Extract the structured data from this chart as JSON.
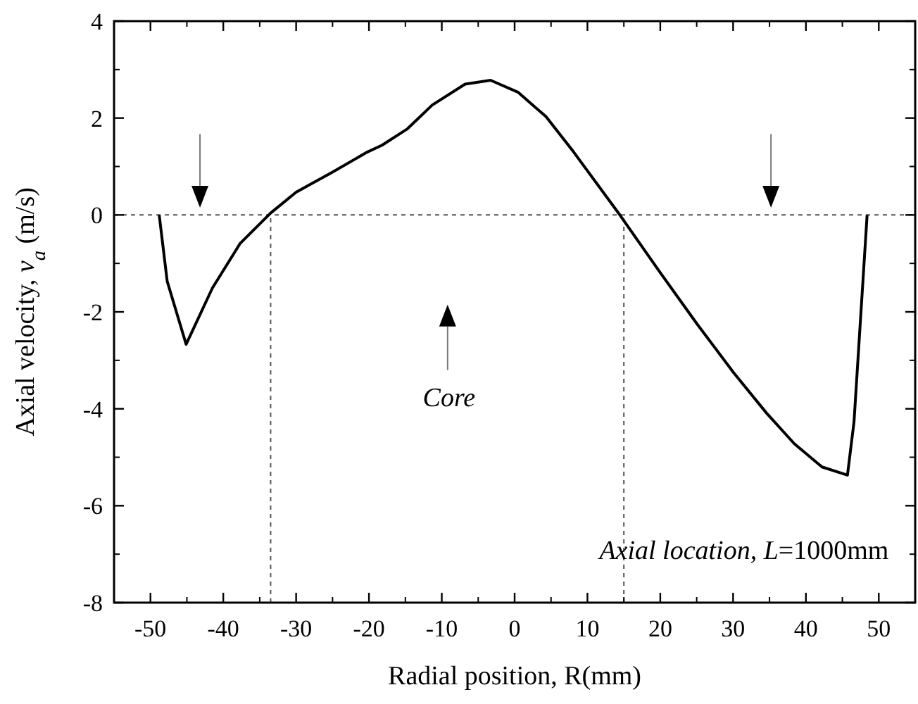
{
  "chart_data": {
    "type": "line",
    "xlabel": "Radial position, R(mm)",
    "ylabel": "Axial velocity, v$_{a}$ (m/s)",
    "xlim": [
      -55,
      55
    ],
    "xticks": [
      -50,
      -40,
      -30,
      -20,
      -10,
      0,
      10,
      20,
      30,
      40,
      50
    ],
    "ylim": [
      -8,
      4
    ],
    "yticks": [
      -8,
      -6,
      -4,
      -2,
      0,
      2,
      4
    ],
    "series": [
      {
        "color": "#000000",
        "x": [
          -48.8,
          -47.7,
          -45.1,
          -41.5,
          -37.7,
          -33.5,
          -30,
          -25.3,
          -20.2,
          -18.2,
          -14.7,
          -11.3,
          -6.8,
          -3.3,
          0.5,
          4.3,
          8.1,
          14.5,
          19.9,
          25,
          30.1,
          34.6,
          38.4,
          42.2,
          45.7,
          46.6,
          48.4
        ],
        "values": [
          0,
          -1.37,
          -2.67,
          -1.51,
          -0.59,
          0.04,
          0.47,
          0.86,
          1.3,
          1.44,
          1.78,
          2.27,
          2.7,
          2.78,
          2.53,
          2.03,
          1.3,
          -0.01,
          -1.17,
          -2.24,
          -3.26,
          -4.09,
          -4.72,
          -5.2,
          -5.37,
          -4.27,
          0
        ]
      }
    ],
    "ref_lines": [
      {
        "axis": "y",
        "value": 0,
        "line_style": "dashed",
        "color": "#555555"
      },
      {
        "axis": "x",
        "value": -33.5,
        "line_style": "dashed",
        "color": "#555555"
      },
      {
        "axis": "x",
        "value": 15,
        "line_style": "dashed",
        "color": "#555555"
      }
    ],
    "annotations": [
      "Core",
      "Axial location, L=1000mm"
    ],
    "grid": false,
    "marker": "none",
    "line_style": "solid"
  }
}
